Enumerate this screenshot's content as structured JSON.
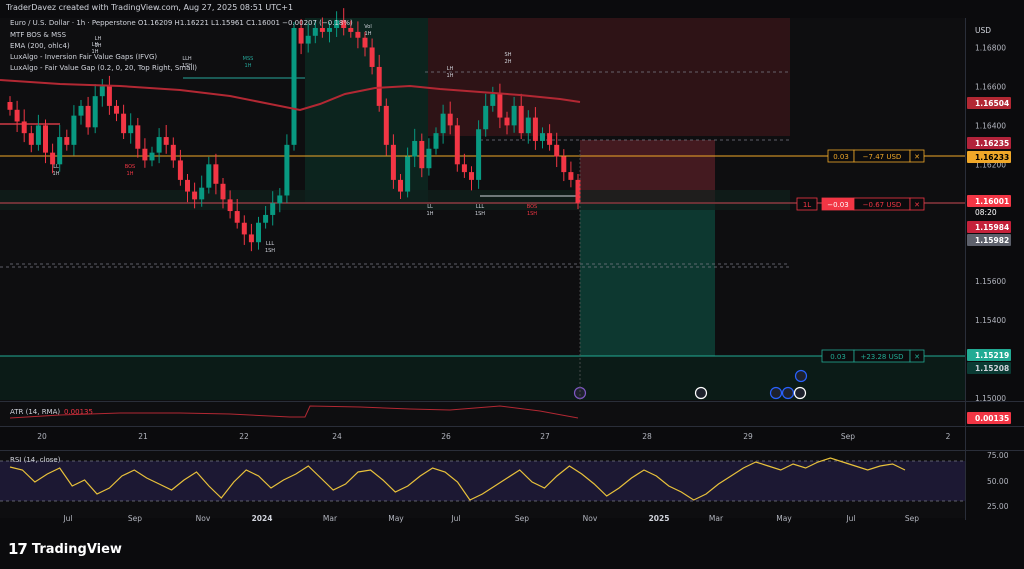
{
  "header": {
    "credit": "TraderDavez created with TradingView.com, Aug 27, 2025 08:51 UTC+1",
    "symbol": "Euro / U.S. Dollar · 1h · Pepperstone",
    "ohlc": "O1.16209 H1.16221 L1.15961 C1.16001 −0.00207 (−0.18%)",
    "indicators": [
      "MTF BOS & MSS",
      "EMA (200, ohlc4)",
      "LuxAlgo - Inversion Fair Value Gaps (IFVG)",
      "LuxAlgo - Fair Value Gap (0.2, 0, 20, Top Right, Small)"
    ]
  },
  "price_axis": {
    "currency": "USD",
    "ticks": [
      "1.16800",
      "1.16600",
      "1.16400",
      "1.16200",
      "1.15800",
      "1.15600",
      "1.15400",
      "1.15000"
    ],
    "tags": {
      "ema": "1.16504",
      "stop_top": "1.16235",
      "stop": "1.16233",
      "last": "1.16001",
      "countdown": "08:20",
      "low1": "1.15984",
      "low2": "1.15982",
      "target": "1.15219",
      "target2": "1.15208"
    }
  },
  "position": {
    "stop_label": "0.03",
    "stop_pnl": "−7.47 USD",
    "entry_qty": "1L",
    "entry_label": "−0.03",
    "entry_pnl": "−0.67 USD",
    "target_label": "0.03",
    "target_pnl": "+23.28 USD"
  },
  "annotations": [
    {
      "t": "LH\n1H"
    },
    {
      "t": "LLH\n1SH"
    },
    {
      "t": "MSS\n1H"
    },
    {
      "t": "LH\n1H"
    },
    {
      "t": "Vol\n1H"
    },
    {
      "t": "BOS\n1H"
    },
    {
      "t": "LL\n1H"
    },
    {
      "t": "LLL\n1SH"
    },
    {
      "t": "LL\n1H"
    },
    {
      "t": "LLL\n1SH"
    },
    {
      "t": "BOS\n1SH"
    },
    {
      "t": "SH\n2H"
    },
    {
      "t": "LH\n1H"
    }
  ],
  "atr": {
    "label": "ATR (14, RMA)",
    "value": "0.00135"
  },
  "time_axis": [
    "20",
    "21",
    "22",
    "23",
    "24",
    "26",
    "27",
    "28",
    "29",
    "Sep",
    "2"
  ],
  "rsi": {
    "label": "RSI (14, close)",
    "ticks": [
      "75.00",
      "50.00",
      "25.00"
    ],
    "months": [
      "Jul",
      "Sep",
      "Nov",
      "2024",
      "Mar",
      "May",
      "Jul",
      "Sep",
      "Nov",
      "2025",
      "Mar",
      "May",
      "Jul",
      "Sep"
    ]
  },
  "brand": {
    "name": "TradingView"
  },
  "colors": {
    "up": "#089981",
    "down": "#f23645",
    "ema": "#b22833",
    "stop_line": "#f0a829",
    "target_line": "#22ab94",
    "rsi": "#e8c13b"
  },
  "chart_data": {
    "type": "candlestick",
    "symbol": "EUR/USD",
    "timeframe": "1h",
    "ylim": [
      1.15,
      1.169
    ],
    "entry": 1.16001,
    "stop": 1.16233,
    "target": 1.15219,
    "ema200_last": 1.16504,
    "close_series": [
      1.1648,
      1.1642,
      1.1636,
      1.163,
      1.164,
      1.1626,
      1.162,
      1.1634,
      1.163,
      1.1645,
      1.165,
      1.1639,
      1.1655,
      1.166,
      1.165,
      1.1646,
      1.1636,
      1.164,
      1.1628,
      1.1622,
      1.1626,
      1.1634,
      1.163,
      1.1622,
      1.1612,
      1.1606,
      1.1602,
      1.1608,
      1.162,
      1.161,
      1.1602,
      1.1596,
      1.159,
      1.1584,
      1.158,
      1.159,
      1.1594,
      1.16,
      1.1604,
      1.163,
      1.169,
      1.1682,
      1.1686,
      1.169,
      1.1688,
      1.169,
      1.1694,
      1.169,
      1.1688,
      1.1685,
      1.168,
      1.167,
      1.165,
      1.163,
      1.1612,
      1.1606,
      1.1624,
      1.1632,
      1.1618,
      1.1628,
      1.1636,
      1.1646,
      1.164,
      1.162,
      1.1616,
      1.1612,
      1.1638,
      1.165,
      1.1656,
      1.1644,
      1.164,
      1.165,
      1.1636,
      1.1644,
      1.1632,
      1.1636,
      1.163,
      1.1624,
      1.1616,
      1.1612,
      1.16
    ],
    "atr_last": 0.00135
  }
}
